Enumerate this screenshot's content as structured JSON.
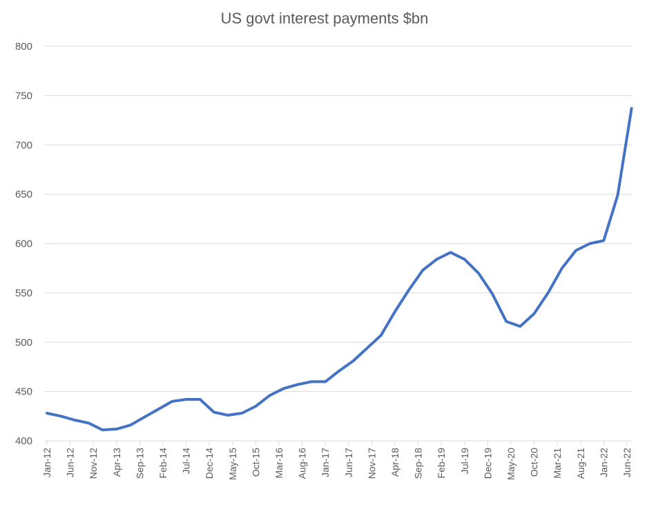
{
  "chart_data": {
    "type": "line",
    "title": "US govt interest payments $bn",
    "xlabel": "",
    "ylabel": "",
    "ylim": [
      400,
      800
    ],
    "yticks": [
      400,
      450,
      500,
      550,
      600,
      650,
      700,
      750,
      800
    ],
    "grid": true,
    "legend": "none",
    "x_tick_labels": [
      "Jan-12",
      "Jun-12",
      "Nov-12",
      "Apr-13",
      "Sep-13",
      "Feb-14",
      "Jul-14",
      "Dec-14",
      "May-15",
      "Oct-15",
      "Mar-16",
      "Aug-16",
      "Jan-17",
      "Jun-17",
      "Nov-17",
      "Apr-18",
      "Sep-18",
      "Feb-19",
      "Jul-19",
      "Dec-19",
      "May-20",
      "Oct-20",
      "Mar-21",
      "Aug-21",
      "Jan-22",
      "Jun-22"
    ],
    "x": [
      "Jan-12",
      "Apr-12",
      "Jul-12",
      "Oct-12",
      "Jan-13",
      "Apr-13",
      "Jul-13",
      "Oct-13",
      "Jan-14",
      "Apr-14",
      "Jul-14",
      "Oct-14",
      "Jan-15",
      "Apr-15",
      "Jul-15",
      "Oct-15",
      "Jan-16",
      "Apr-16",
      "Jul-16",
      "Oct-16",
      "Jan-17",
      "Apr-17",
      "Jul-17",
      "Oct-17",
      "Jan-18",
      "Apr-18",
      "Jul-18",
      "Oct-18",
      "Jan-19",
      "Apr-19",
      "Jul-19",
      "Oct-19",
      "Jan-20",
      "Apr-20",
      "Jul-20",
      "Oct-20",
      "Jan-21",
      "Apr-21",
      "Jul-21",
      "Oct-21",
      "Jan-22",
      "Apr-22",
      "Jul-22"
    ],
    "series": [
      {
        "values": [
          428,
          425,
          421,
          418,
          411,
          412,
          416,
          424,
          432,
          440,
          442,
          442,
          429,
          426,
          428,
          435,
          446,
          453,
          457,
          460,
          460,
          471,
          481,
          494,
          507,
          531,
          553,
          573,
          584,
          591,
          584,
          570,
          549,
          521,
          516,
          529,
          550,
          575,
          593,
          600,
          603,
          649,
          737
        ]
      }
    ],
    "colors": {
      "line": "#4472c4",
      "grid": "#d9d9d9",
      "text": "#595959"
    }
  }
}
